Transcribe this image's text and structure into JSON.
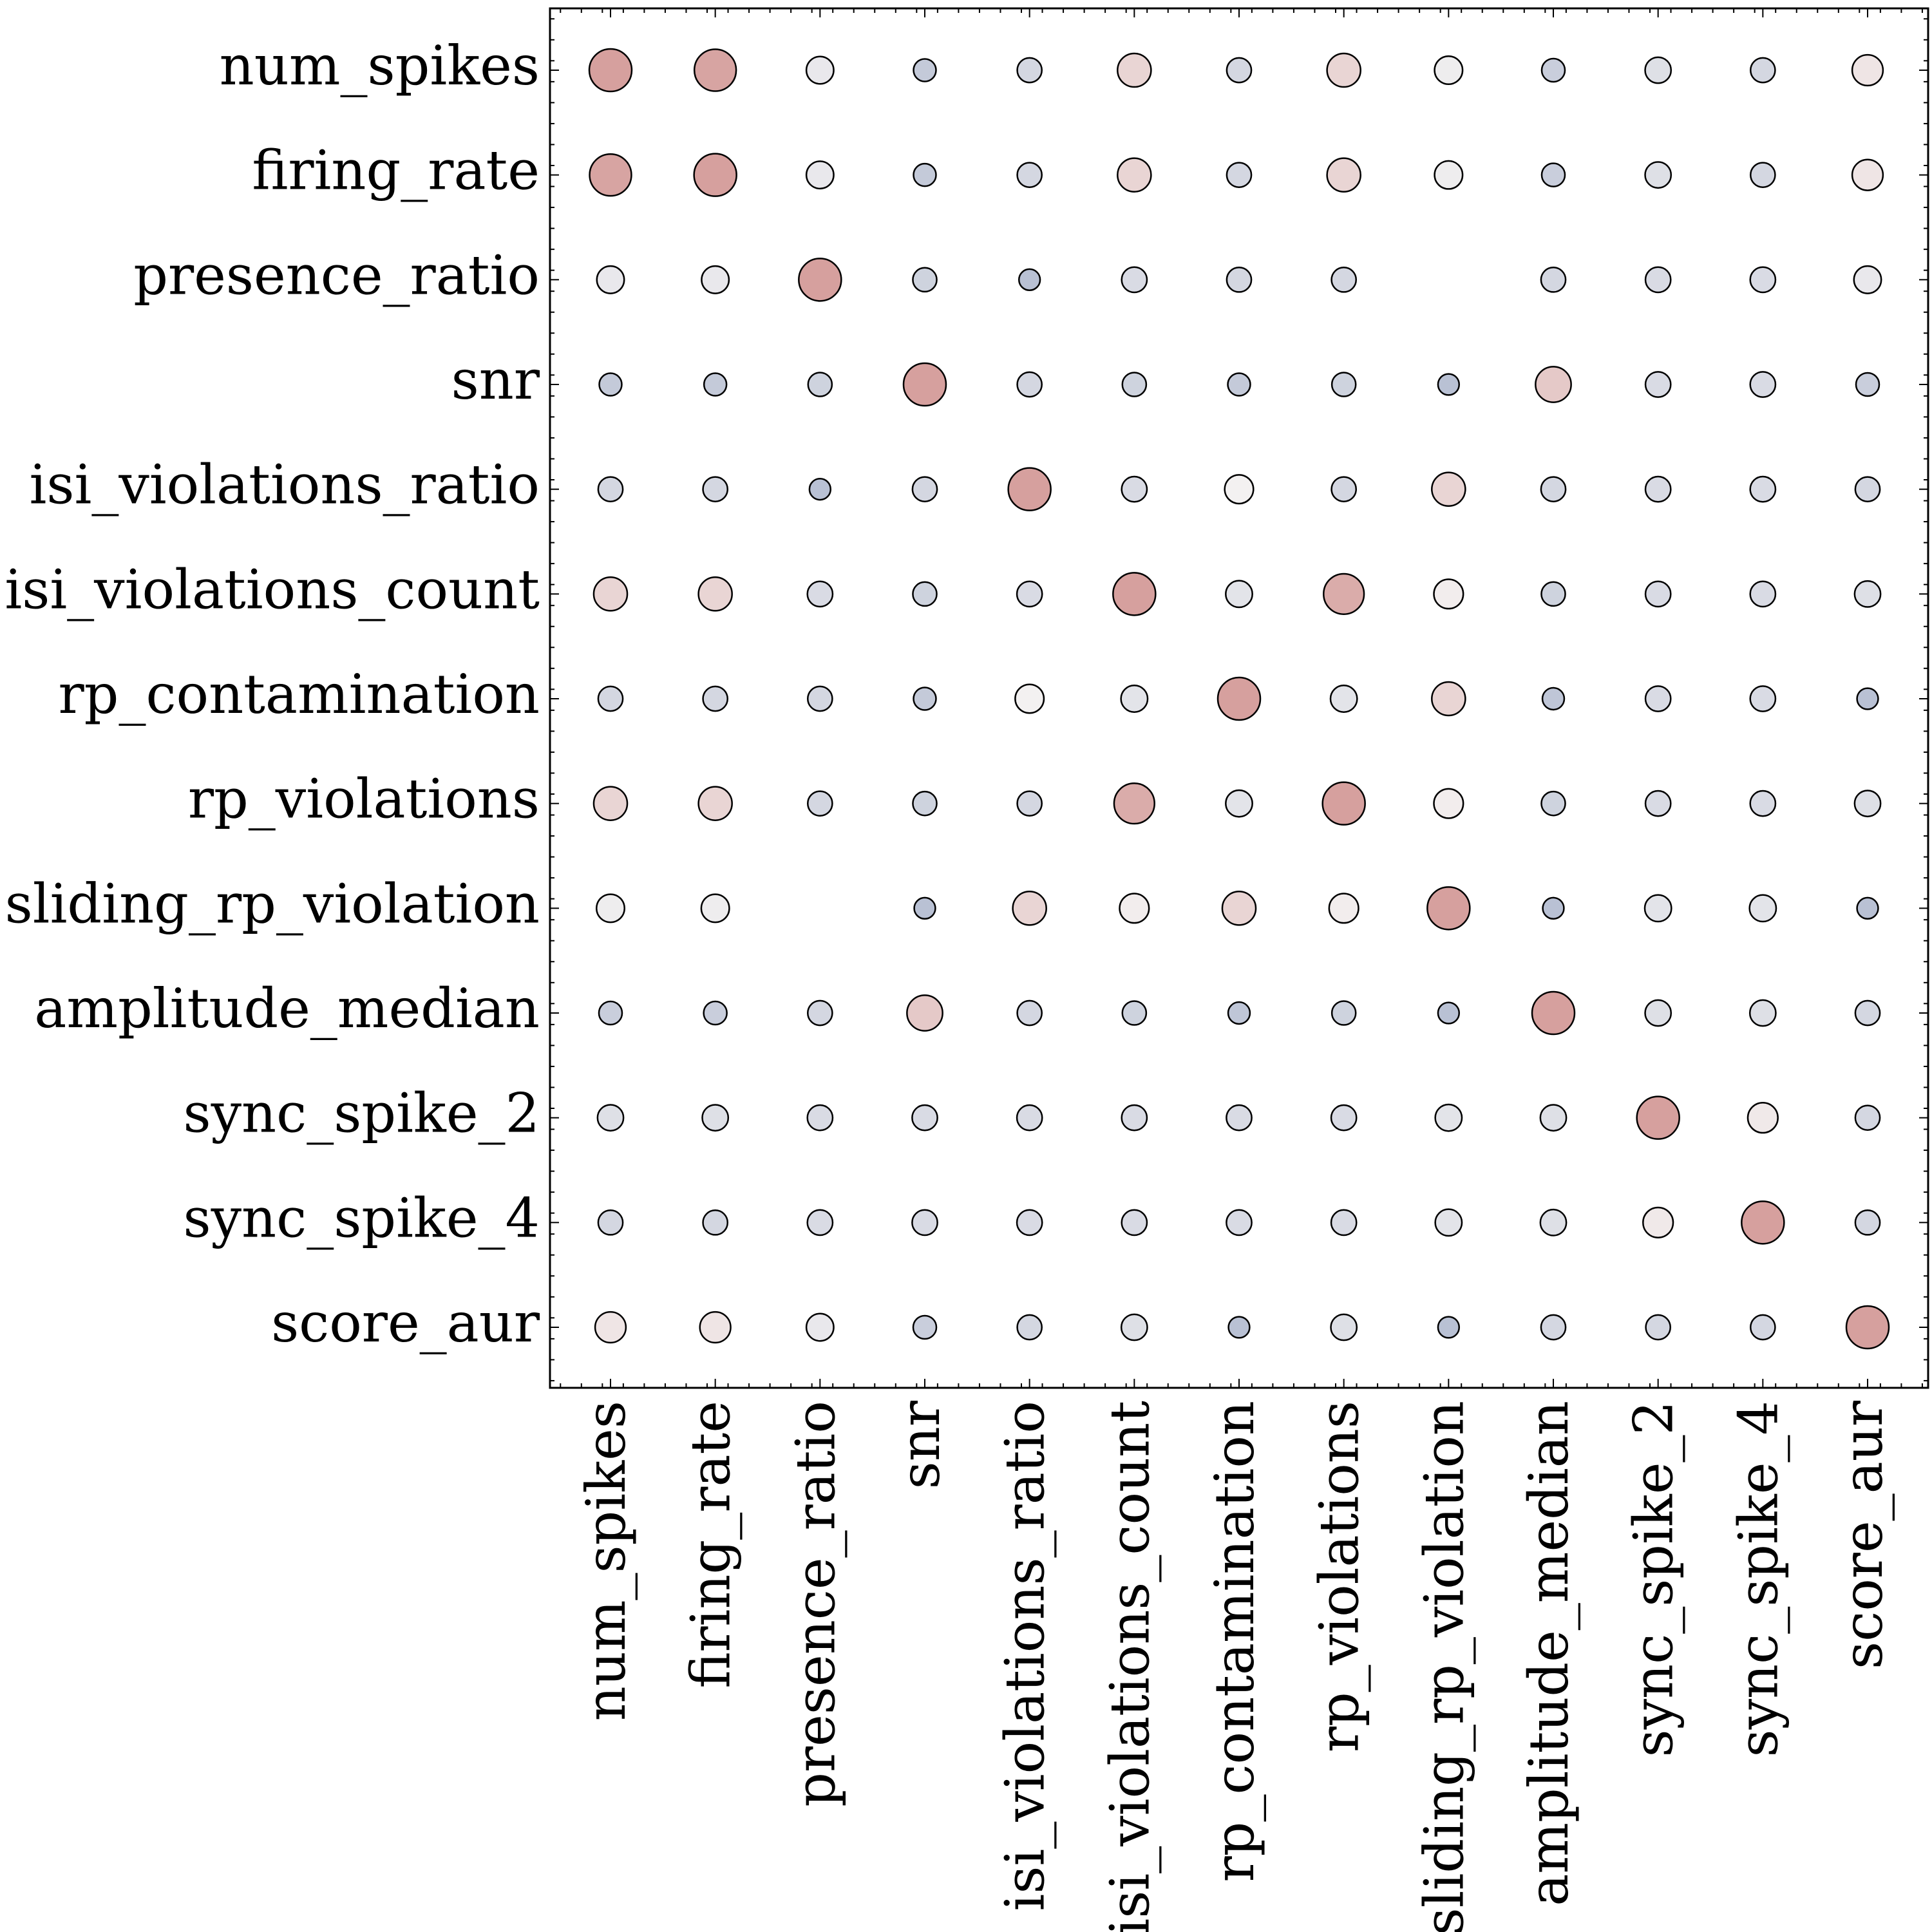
{
  "chart_data": {
    "type": "bubble_matrix",
    "categories": [
      "num_spikes",
      "firing_rate",
      "presence_ratio",
      "snr",
      "isi_violations_ratio",
      "isi_violations_count",
      "rp_contamination",
      "rp_violations",
      "sliding_rp_violation",
      "amplitude_median",
      "sync_spike_2",
      "sync_spike_4",
      "score_aur"
    ],
    "values": [
      [
        1,
        0.95,
        -0.1,
        -0.45,
        -0.3,
        0.35,
        -0.3,
        0.35,
        -0.05,
        -0.4,
        -0.2,
        -0.3,
        0.15
      ],
      [
        0.95,
        1,
        -0.1,
        -0.45,
        -0.3,
        0.35,
        -0.3,
        0.35,
        -0.05,
        -0.4,
        -0.2,
        -0.3,
        0.15
      ],
      [
        -0.1,
        -0.1,
        1,
        -0.35,
        -0.55,
        -0.25,
        -0.3,
        -0.3,
        null,
        -0.3,
        -0.25,
        -0.25,
        -0.1
      ],
      [
        -0.45,
        -0.45,
        -0.35,
        1,
        -0.3,
        -0.35,
        -0.45,
        -0.35,
        -0.55,
        0.5,
        -0.25,
        -0.25,
        -0.4
      ],
      [
        -0.3,
        -0.3,
        -0.55,
        -0.3,
        1,
        -0.25,
        0.0,
        -0.3,
        0.35,
        -0.3,
        -0.25,
        -0.25,
        -0.3
      ],
      [
        0.35,
        0.35,
        -0.25,
        -0.35,
        -0.25,
        1,
        -0.15,
        0.85,
        0.05,
        -0.35,
        -0.25,
        -0.25,
        -0.2
      ],
      [
        -0.3,
        -0.3,
        -0.3,
        -0.45,
        0.0,
        -0.15,
        1,
        -0.15,
        0.35,
        -0.5,
        -0.25,
        -0.25,
        -0.55
      ],
      [
        0.35,
        0.35,
        -0.3,
        -0.35,
        -0.3,
        0.85,
        -0.15,
        1,
        0.05,
        -0.35,
        -0.25,
        -0.25,
        -0.2
      ],
      [
        -0.05,
        -0.05,
        null,
        -0.55,
        0.35,
        0.05,
        0.35,
        0.05,
        1,
        -0.55,
        -0.15,
        -0.15,
        -0.55
      ],
      [
        -0.4,
        -0.4,
        -0.3,
        0.5,
        -0.3,
        -0.35,
        -0.5,
        -0.35,
        -0.55,
        1,
        -0.2,
        -0.2,
        -0.3
      ],
      [
        -0.2,
        -0.2,
        -0.25,
        -0.25,
        -0.25,
        -0.25,
        -0.25,
        -0.25,
        -0.15,
        -0.2,
        1,
        0.1,
        -0.3
      ],
      [
        -0.3,
        -0.3,
        -0.25,
        -0.25,
        -0.25,
        -0.25,
        -0.25,
        -0.25,
        -0.15,
        -0.2,
        0.1,
        1,
        -0.3
      ],
      [
        0.15,
        0.15,
        -0.1,
        -0.4,
        -0.3,
        -0.2,
        -0.55,
        -0.2,
        -0.55,
        -0.3,
        -0.3,
        -0.3,
        1
      ]
    ],
    "vlim": [
      -1,
      1
    ],
    "cmap": [
      "#8a9abc",
      "#f3f1f1",
      "#d6a09e"
    ]
  }
}
